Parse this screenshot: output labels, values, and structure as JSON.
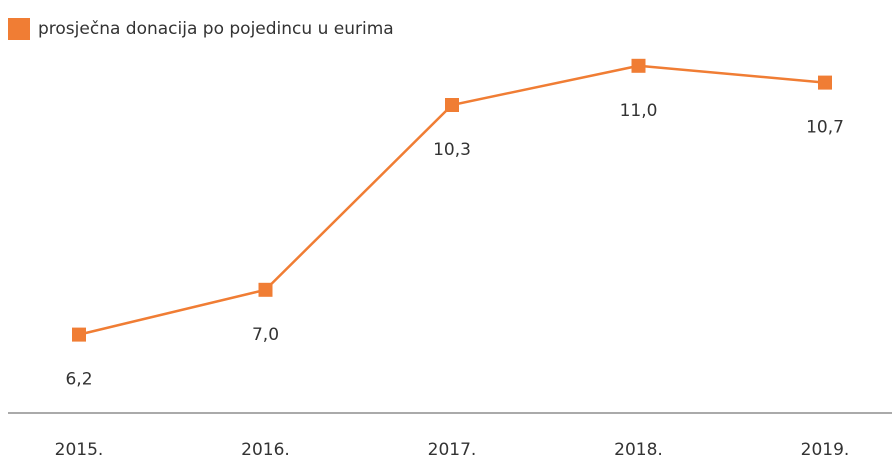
{
  "chart_data": {
    "type": "line",
    "categories": [
      "2015.",
      "2016.",
      "2017.",
      "2018.",
      "2019."
    ],
    "series": [
      {
        "name": "prosječna donacija po pojedincu u eurima",
        "color": "#f07d34",
        "values": [
          6.2,
          7.0,
          10.3,
          11.0,
          10.7
        ],
        "value_labels": [
          "6,2",
          "7,0",
          "10,3",
          "11,0",
          "10,7"
        ]
      }
    ],
    "ylim": [
      4.8,
      11.8
    ],
    "legend": "top-left"
  }
}
